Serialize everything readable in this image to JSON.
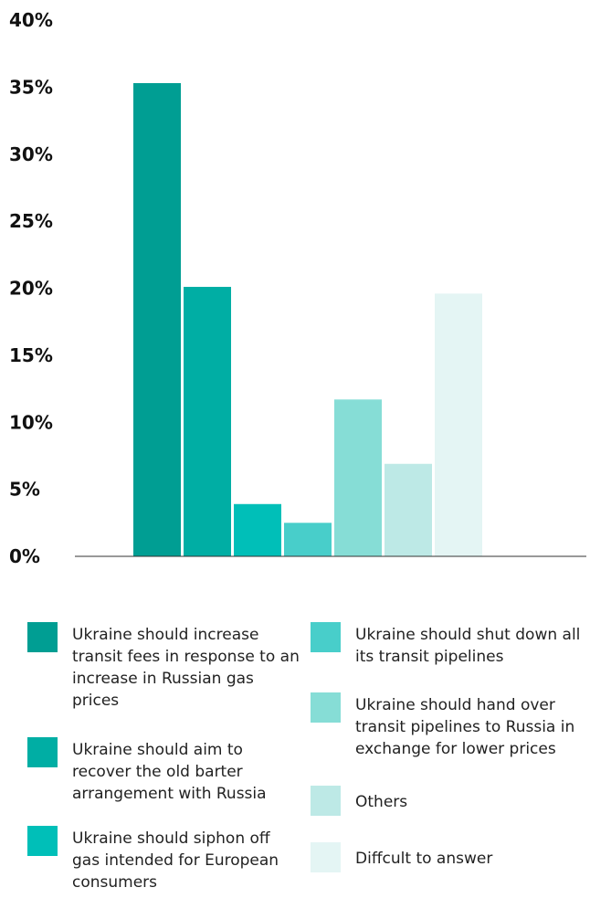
{
  "chart_data": {
    "type": "bar",
    "title": "",
    "xlabel": "",
    "ylabel": "",
    "ylim": [
      0,
      40
    ],
    "y_ticks": [
      "0%",
      "5%",
      "10%",
      "15%",
      "20%",
      "25%",
      "30%",
      "35%",
      "40%"
    ],
    "grid": false,
    "legend_position": "bottom",
    "categories": [
      "Ukraine should increase transit fees in response to an increase in Russian gas prices",
      "Ukraine should aim to recover the old barter arrangement with Russia",
      "Ukraine should siphon off gas intended for European consumers",
      "Ukraine should shut down all its transit pipelines",
      "Ukraine should hand over transit pipelines to Russia in exchange for lower prices",
      "Others",
      "Diffcult to answer"
    ],
    "values": [
      35.3,
      20.1,
      3.9,
      2.5,
      11.7,
      6.9,
      19.6
    ],
    "colors": [
      "#009e93",
      "#00aea4",
      "#00bfb8",
      "#48ceca",
      "#86ddd6",
      "#bde9e6",
      "#e4f5f4"
    ]
  }
}
